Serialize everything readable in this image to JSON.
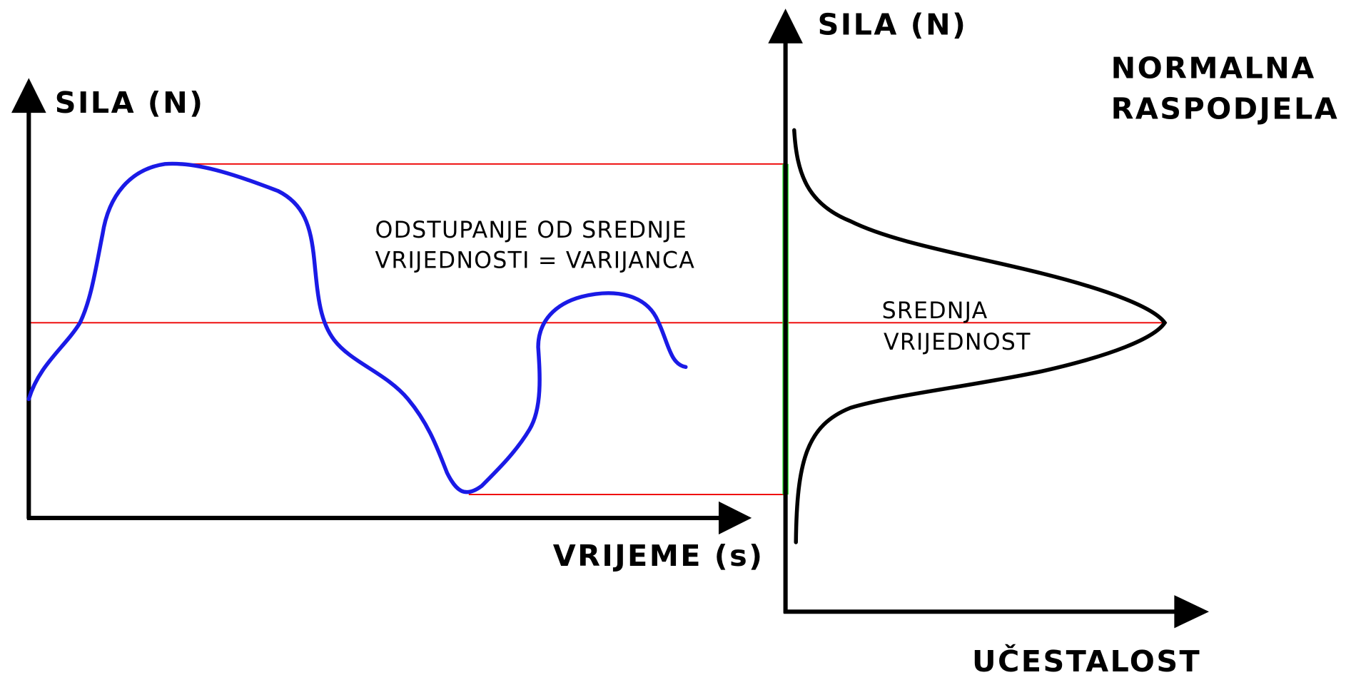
{
  "left_plot": {
    "y_label": "SILA (N)",
    "x_label": "VRIJEME (s)"
  },
  "variance_note": [
    "ODSTUPANJE OD SREDNJE",
    "VRIJEDNOSTI = VARIJANCA"
  ],
  "mean_note": [
    "SREDNJA",
    "VRIJEDNOST"
  ],
  "right_plot": {
    "y_label": "SILA (N)",
    "x_label": "UČESTALOST",
    "title": [
      "NORMALNA",
      "RASPODJELA"
    ]
  }
}
